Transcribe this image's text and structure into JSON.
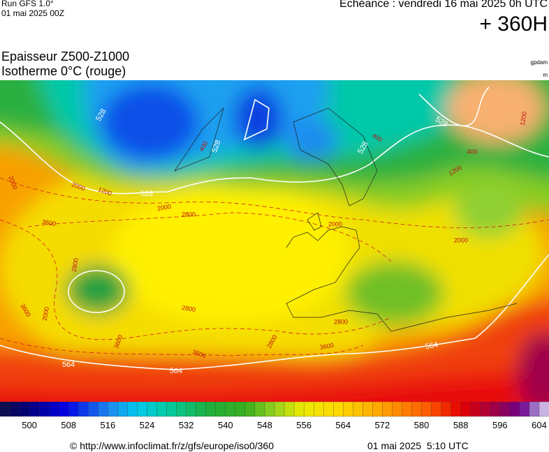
{
  "header": {
    "run": "Run GFS 1.0°",
    "run_date": "01 mai 2025 00Z",
    "valid": "Echéance : vendredi 16 mai 2025 0h UTC",
    "lead": "+ 360H"
  },
  "map": {
    "title": "Epaisseur Z500-Z1000",
    "subtitle": "Isotherme 0°C (rouge)",
    "unit_thickness": "gpdam",
    "unit_iso": "m",
    "contour_labels": [
      "528",
      "528",
      "528",
      "528",
      "528",
      "564",
      "564",
      "564",
      "2000",
      "2000",
      "2000",
      "2000",
      "2000",
      "2800",
      "2800",
      "2800",
      "2800",
      "2800",
      "3600",
      "3600",
      "3600",
      "3600",
      "3600",
      "1200",
      "1200",
      "400",
      "400",
      "400",
      "2000",
      "1200"
    ]
  },
  "colorbar": {
    "range": [
      494,
      606
    ],
    "ticks": [
      500,
      508,
      516,
      524,
      532,
      540,
      548,
      556,
      564,
      572,
      580,
      588,
      596,
      604
    ]
  },
  "footer": {
    "source": "© http://www.infoclimat.fr/z/gfs/europe/iso0/360",
    "issued": "01 mai 2025  5:10 UTC"
  }
}
